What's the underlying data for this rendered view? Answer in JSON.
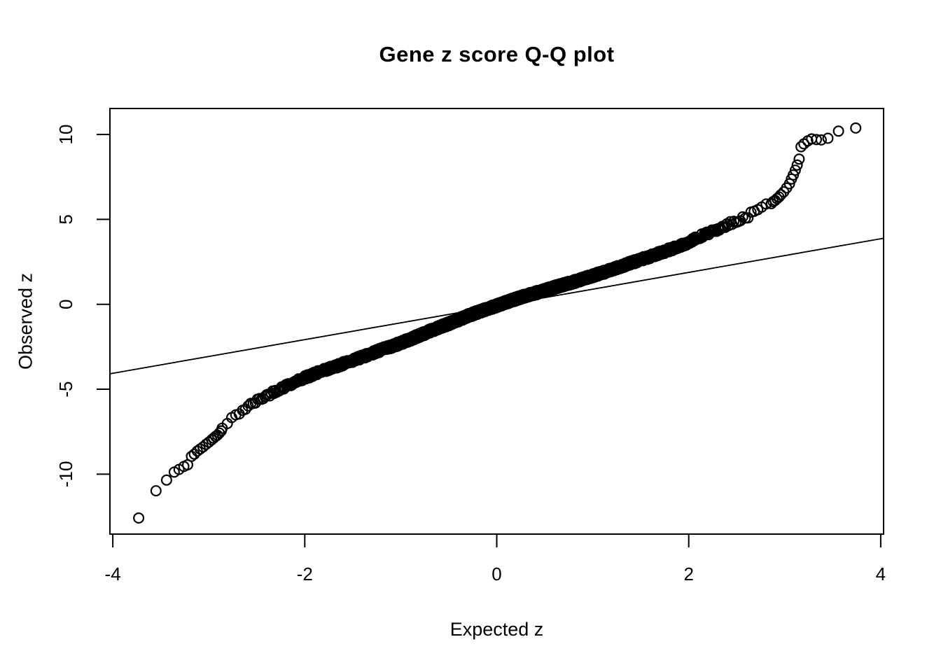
{
  "title": "Gene z score Q-Q plot",
  "colors": {
    "foreground": "#000000",
    "background": "#ffffff"
  },
  "chart_data": {
    "type": "scatter",
    "title": "Gene z score Q-Q plot",
    "xlabel": "Expected z",
    "ylabel": "Observed z",
    "xlim": [
      -4.03,
      4.03
    ],
    "ylim": [
      -13.53,
      11.53
    ],
    "x_ticks": [
      -4,
      -2,
      0,
      2,
      4
    ],
    "y_ticks": [
      -10,
      -5,
      0,
      5,
      10
    ],
    "grid": false,
    "legend": null,
    "marker": "open-circle",
    "marker_color": "#000000",
    "reference_line": {
      "slope": 0.99,
      "intercept": -0.1
    },
    "n_points": 2600,
    "band_range": [
      -2.9,
      2.9
    ],
    "band_jitter": 0.12,
    "curve_anchors": {
      "x": [
        -2.92,
        -2.85,
        -2.78,
        -2.7,
        -2.6,
        -2.5,
        -2.4,
        -2.3,
        -2.2,
        -2.1,
        -2.0,
        -1.9,
        -1.8,
        -1.7,
        -1.6,
        -1.5,
        -1.4,
        -1.3,
        -1.2,
        -1.1,
        -1.0,
        -0.9,
        -0.8,
        -0.7,
        -0.6,
        -0.5,
        -0.4,
        -0.3,
        -0.2,
        -0.1,
        0.0,
        0.1,
        0.2,
        0.3,
        0.4,
        0.5,
        0.6,
        0.7,
        0.8,
        0.9,
        1.0,
        1.1,
        1.2,
        1.3,
        1.4,
        1.5,
        1.6,
        1.7,
        1.8,
        1.9,
        2.0,
        2.1,
        2.2,
        2.3,
        2.4,
        2.5,
        2.6,
        2.7,
        2.8,
        2.86,
        2.92
      ],
      "y": [
        -7.7,
        -7.25,
        -6.85,
        -6.45,
        -6.05,
        -5.7,
        -5.38,
        -5.08,
        -4.82,
        -4.56,
        -4.32,
        -4.1,
        -3.9,
        -3.7,
        -3.5,
        -3.3,
        -3.1,
        -2.88,
        -2.67,
        -2.48,
        -2.28,
        -2.05,
        -1.82,
        -1.58,
        -1.36,
        -1.14,
        -0.92,
        -0.68,
        -0.47,
        -0.27,
        -0.08,
        0.12,
        0.32,
        0.5,
        0.66,
        0.82,
        1.0,
        1.16,
        1.32,
        1.5,
        1.68,
        1.86,
        2.05,
        2.24,
        2.44,
        2.63,
        2.82,
        3.02,
        3.22,
        3.42,
        3.62,
        3.95,
        4.18,
        4.42,
        4.66,
        4.95,
        5.15,
        5.48,
        5.82,
        6.0,
        6.2
      ]
    },
    "lower_tail_points": [
      [
        -3.73,
        -12.58
      ],
      [
        -3.55,
        -10.98
      ],
      [
        -3.44,
        -10.35
      ],
      [
        -3.36,
        -9.88
      ],
      [
        -3.31,
        -9.72
      ],
      [
        -3.26,
        -9.55
      ],
      [
        -3.22,
        -9.45
      ],
      [
        -3.18,
        -8.95
      ],
      [
        -3.15,
        -8.82
      ],
      [
        -3.12,
        -8.64
      ],
      [
        -3.09,
        -8.52
      ],
      [
        -3.06,
        -8.4
      ],
      [
        -3.03,
        -8.25
      ],
      [
        -3.0,
        -8.12
      ],
      [
        -2.97,
        -7.98
      ],
      [
        -2.95,
        -7.88
      ],
      [
        -2.93,
        -7.78
      ],
      [
        -2.91,
        -7.7
      ],
      [
        -2.89,
        -7.58
      ],
      [
        -2.87,
        -7.45
      ]
    ],
    "upper_tail_points": [
      [
        2.88,
        6.05
      ],
      [
        2.9,
        6.12
      ],
      [
        2.92,
        6.22
      ],
      [
        2.94,
        6.32
      ],
      [
        2.96,
        6.45
      ],
      [
        2.99,
        6.62
      ],
      [
        3.02,
        6.85
      ],
      [
        3.05,
        7.1
      ],
      [
        3.07,
        7.38
      ],
      [
        3.09,
        7.62
      ],
      [
        3.11,
        7.9
      ],
      [
        3.13,
        8.2
      ],
      [
        3.15,
        8.55
      ],
      [
        3.17,
        9.28
      ],
      [
        3.2,
        9.45
      ],
      [
        3.24,
        9.62
      ],
      [
        3.28,
        9.74
      ],
      [
        3.33,
        9.7
      ],
      [
        3.38,
        9.68
      ],
      [
        3.45,
        9.78
      ],
      [
        3.56,
        10.2
      ],
      [
        3.74,
        10.38
      ]
    ]
  }
}
